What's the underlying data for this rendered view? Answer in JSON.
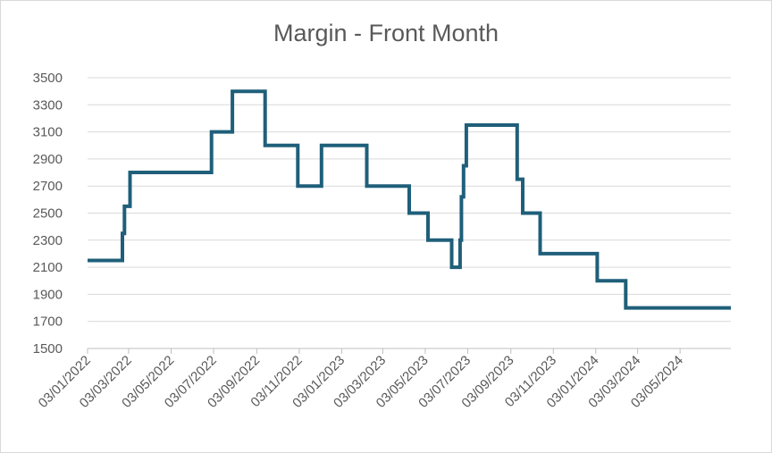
{
  "chart_data": {
    "type": "line",
    "title": "Margin - Front Month",
    "xlabel": "",
    "ylabel": "",
    "ylim": [
      1500,
      3500
    ],
    "xlim": [
      "2022-01-03",
      "2024-07-15"
    ],
    "y_ticks": [
      1500,
      1700,
      1900,
      2100,
      2300,
      2500,
      2700,
      2900,
      3100,
      3300,
      3500
    ],
    "x_ticks": [
      "03/01/2022",
      "03/03/2022",
      "03/05/2022",
      "03/07/2022",
      "03/09/2022",
      "03/11/2022",
      "03/01/2023",
      "03/03/2023",
      "03/05/2023",
      "03/07/2023",
      "03/09/2023",
      "03/11/2023",
      "03/01/2024",
      "03/03/2024",
      "03/05/2024"
    ],
    "grid": true,
    "legend": "none",
    "line_color": "#1f5f7a",
    "series": [
      {
        "x": [
          "2022-01-03",
          "2022-02-22",
          "2022-02-25",
          "2022-02-26",
          "2022-03-05",
          "2022-06-30",
          "2022-07-15",
          "2022-07-30",
          "2022-09-15",
          "2022-11-01",
          "2022-12-05",
          "2022-12-12",
          "2023-02-08",
          "2023-04-10",
          "2023-05-07",
          "2023-06-10",
          "2023-06-22",
          "2023-06-24",
          "2023-06-27",
          "2023-07-01",
          "2023-09-12",
          "2023-09-20",
          "2023-10-15",
          "2024-01-05",
          "2024-02-15",
          "2024-07-15"
        ],
        "y": [
          2150,
          2350,
          2550,
          2550,
          2800,
          3100,
          3100,
          3400,
          3000,
          2700,
          3000,
          3000,
          2700,
          2500,
          2300,
          2100,
          2300,
          2620,
          2850,
          3150,
          2750,
          2500,
          2200,
          2000,
          1800,
          1800
        ]
      }
    ]
  }
}
